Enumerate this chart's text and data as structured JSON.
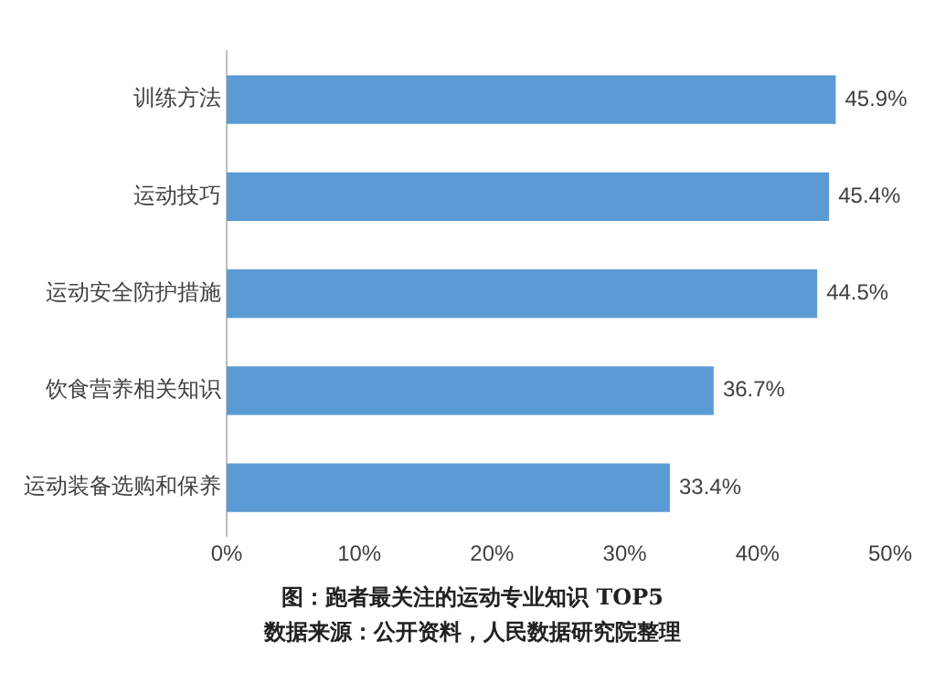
{
  "chart_data": {
    "type": "bar",
    "orientation": "horizontal",
    "title": "图：跑者最关注的运动专业知识 TOP5",
    "annotations": [
      "数据来源：公开资料，人民数据研究院整理"
    ],
    "categories": [
      "训练方法",
      "运动技巧",
      "运动安全防护措施",
      "饮食营养相关知识",
      "运动装备选购和保养"
    ],
    "values": [
      45.9,
      45.4,
      44.5,
      36.7,
      33.4
    ],
    "value_labels": [
      "45.9%",
      "45.4%",
      "44.5%",
      "36.7%",
      "33.4%"
    ],
    "color": "#5b9bd5",
    "xlim": [
      0,
      50
    ],
    "xticks": [
      {
        "value": 0,
        "label": "0%"
      },
      {
        "value": 10,
        "label": "10%"
      },
      {
        "value": 20,
        "label": "20%"
      },
      {
        "value": 30,
        "label": "30%"
      },
      {
        "value": 40,
        "label": "40%"
      },
      {
        "value": 50,
        "label": "50%"
      }
    ],
    "grid": false,
    "legend": false
  }
}
